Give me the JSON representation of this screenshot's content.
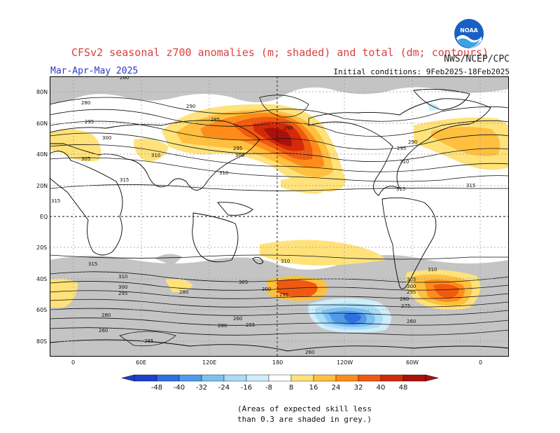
{
  "header": {
    "title": "CFSv2 seasonal z700 anomalies (m; shaded) and total (dm; contours)",
    "org": "NWS/NCEP/CPC",
    "season": "Mar-Apr-May 2025",
    "initial_conditions": "Initial conditions: 9Feb2025-18Feb2025",
    "logo_text": "NOAA"
  },
  "axes": {
    "lat_labels": [
      "80N",
      "60N",
      "40N",
      "20N",
      "EQ",
      "20S",
      "40S",
      "60S",
      "80S"
    ],
    "lon_labels": [
      "0",
      "60E",
      "120E",
      "180",
      "120W",
      "60W",
      "0"
    ]
  },
  "contour_labels": [
    "260",
    "265",
    "270",
    "275",
    "280",
    "285",
    "290",
    "295",
    "300",
    "305",
    "310",
    "315",
    "255"
  ],
  "colorbar": {
    "ticks": [
      "-48",
      "-40",
      "-32",
      "-24",
      "-16",
      "-8",
      "8",
      "16",
      "24",
      "32",
      "40",
      "48"
    ],
    "colors": [
      "#1e3fcf",
      "#2f6fe0",
      "#4f9be8",
      "#7fc0f2",
      "#a8dcf8",
      "#cdeefa",
      "#ffffff",
      "#ffe27a",
      "#ffbf3f",
      "#ff8c1a",
      "#f05a10",
      "#d42a0a",
      "#a8120a"
    ]
  },
  "footnote": {
    "line1": "(Areas of expected skill less",
    "line2": "than 0.3 are shaded in grey.)"
  },
  "colors": {
    "skill_grey": "#c4c4c4",
    "land_outline": "#000000",
    "title_red": "#d94040",
    "season_blue": "#2a3acb"
  }
}
